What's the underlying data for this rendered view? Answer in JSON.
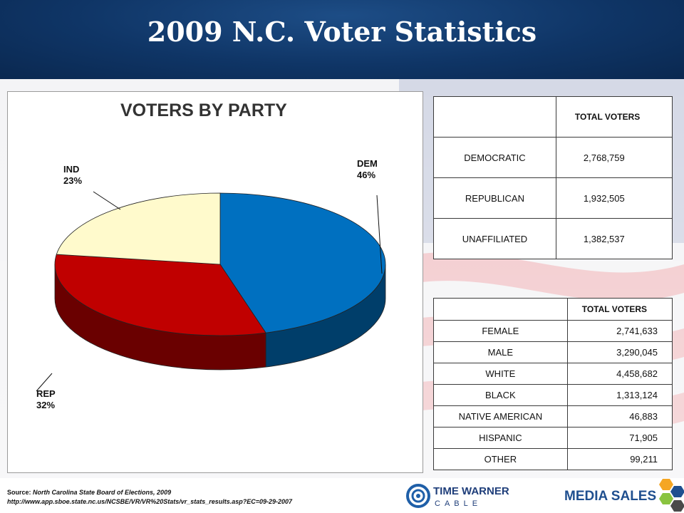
{
  "header": {
    "title": "2009 N.C. Voter Statistics"
  },
  "chart_data": {
    "type": "pie",
    "title": "VOTERS BY PARTY",
    "slices": [
      {
        "label": "DEM",
        "percent": 46,
        "color": "#0070c0"
      },
      {
        "label": "REP",
        "percent": 32,
        "color": "#c00000"
      },
      {
        "label": "IND",
        "percent": 23,
        "color": "#fffacc"
      }
    ],
    "style": "3d"
  },
  "party_table": {
    "header": "TOTAL VOTERS",
    "rows": [
      {
        "label": "DEMOCRATIC",
        "value": "2,768,759"
      },
      {
        "label": "REPUBLICAN",
        "value": "1,932,505"
      },
      {
        "label": "UNAFFILIATED",
        "value": "1,382,537"
      }
    ]
  },
  "demo_table": {
    "header": "TOTAL VOTERS",
    "rows": [
      {
        "label": "FEMALE",
        "value": "2,741,633"
      },
      {
        "label": "MALE",
        "value": "3,290,045"
      },
      {
        "label": "WHITE",
        "value": "4,458,682"
      },
      {
        "label": "BLACK",
        "value": "1,313,124"
      },
      {
        "label": "NATIVE AMERICAN",
        "value": "46,883"
      },
      {
        "label": "HISPANIC",
        "value": "71,905"
      },
      {
        "label": "OTHER",
        "value": "99,211"
      }
    ]
  },
  "source": {
    "prefix": "Source:",
    "org": "North Carolina State Board of Elections, 2009",
    "url": "http://www.app.sboe.state.nc.us/NCSBE/VR/VR%20Stats/vr_stats_results.asp?EC=09-29-2007"
  },
  "logos": {
    "twc_line1": "TIME WARNER",
    "twc_line2": "CABLE",
    "media_sales": "MEDIA SALES"
  }
}
